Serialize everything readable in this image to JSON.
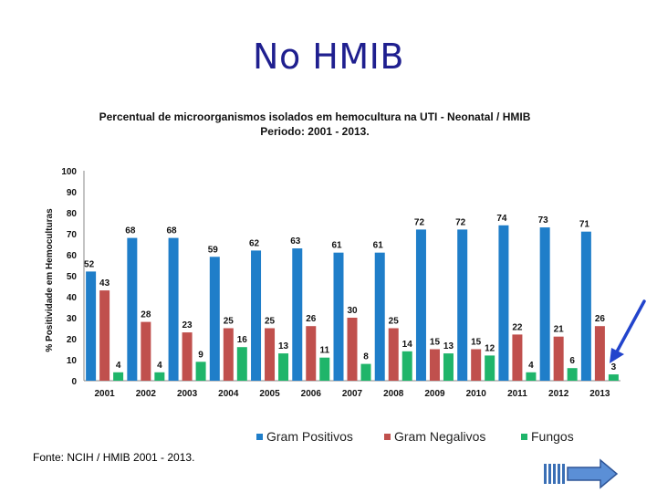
{
  "slide": {
    "title": "No HMIB"
  },
  "source": "Fonte: NCIH / HMIB 2001 - 2013.",
  "chart_data": {
    "type": "bar",
    "title": "Percentual de microorganismos isolados em hemocultura  na UTI - Neonatal / HMIB",
    "subtitle": "Periodo:  2001 - 2013.",
    "xlabel": "",
    "ylabel": "% Positividade em Hemoculturas",
    "ylim": [
      0,
      100
    ],
    "yticks": [
      0,
      10,
      20,
      30,
      40,
      50,
      60,
      70,
      80,
      90,
      100
    ],
    "grid": false,
    "legend_position": "bottom",
    "categories": [
      "2001",
      "2002",
      "2003",
      "2004",
      "2005",
      "2006",
      "2007",
      "2008",
      "2009",
      "2010",
      "2011",
      "2012",
      "2013"
    ],
    "series": [
      {
        "name": "Gram Positivos",
        "color": "#1f7ec9",
        "values": [
          52,
          68,
          68,
          59,
          62,
          63,
          61,
          61,
          72,
          72,
          74,
          73,
          71
        ]
      },
      {
        "name": "Gram Negalivos",
        "color": "#c0504d",
        "values": [
          43,
          28,
          23,
          25,
          25,
          26,
          30,
          25,
          15,
          15,
          22,
          21,
          26
        ]
      },
      {
        "name": "Fungos",
        "color": "#1fb56a",
        "values": [
          4,
          4,
          9,
          16,
          13,
          11,
          8,
          14,
          13,
          12,
          4,
          6,
          3
        ]
      }
    ],
    "annotation_color": "#2244cc"
  }
}
